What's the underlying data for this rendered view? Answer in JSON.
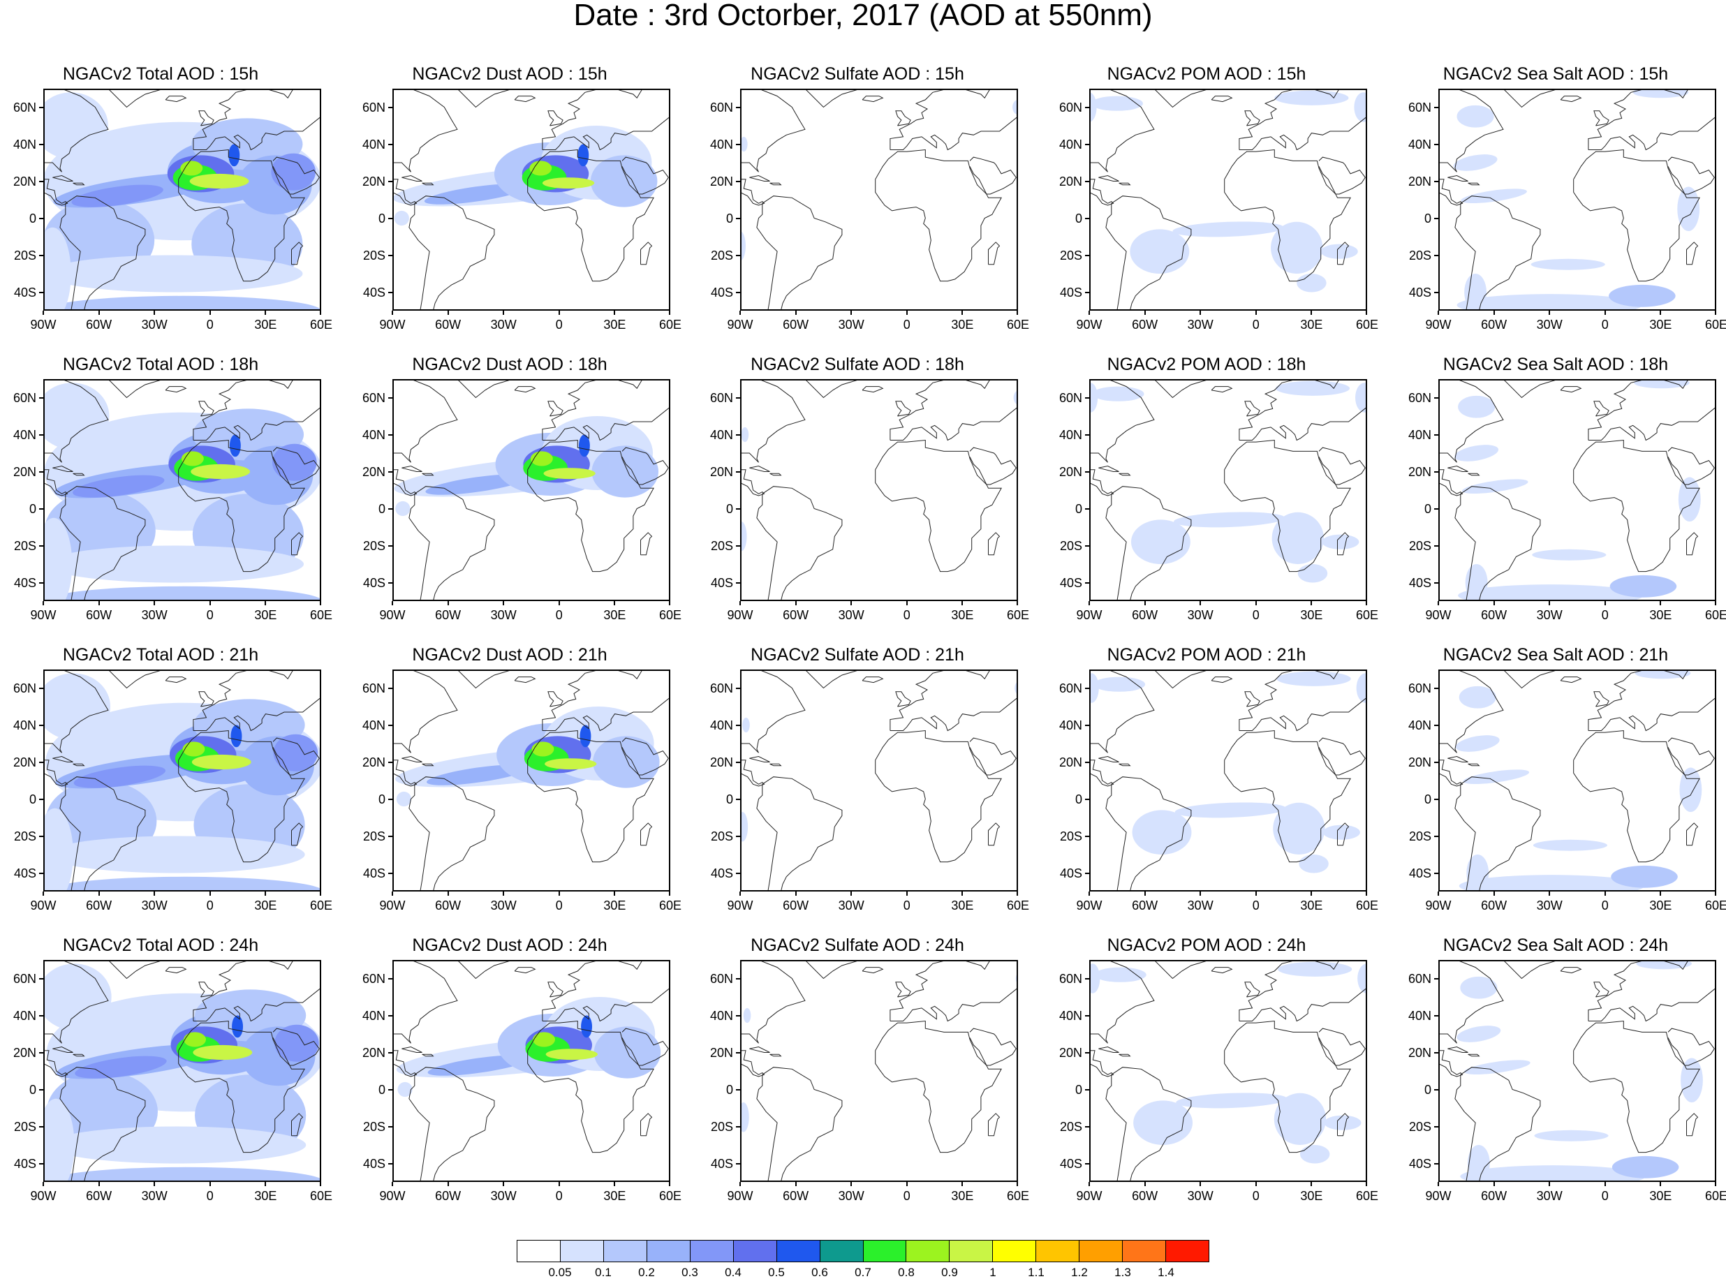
{
  "title": "Date : 3rd Octorber, 2017 (AOD at 550nm)",
  "panels": [
    {
      "title": "NGACv2 Total AOD : 15h",
      "species": "total",
      "hour": 15
    },
    {
      "title": "NGACv2 Dust AOD : 15h",
      "species": "dust",
      "hour": 15
    },
    {
      "title": "NGACv2 Sulfate AOD : 15h",
      "species": "sulfate",
      "hour": 15
    },
    {
      "title": "NGACv2 POM AOD : 15h",
      "species": "pom",
      "hour": 15
    },
    {
      "title": "NGACv2 Sea Salt AOD : 15h",
      "species": "seasalt",
      "hour": 15
    },
    {
      "title": "NGACv2 Total AOD : 18h",
      "species": "total",
      "hour": 18
    },
    {
      "title": "NGACv2 Dust AOD : 18h",
      "species": "dust",
      "hour": 18
    },
    {
      "title": "NGACv2 Sulfate AOD : 18h",
      "species": "sulfate",
      "hour": 18
    },
    {
      "title": "NGACv2 POM AOD : 18h",
      "species": "pom",
      "hour": 18
    },
    {
      "title": "NGACv2 Sea Salt AOD : 18h",
      "species": "seasalt",
      "hour": 18
    },
    {
      "title": "NGACv2 Total AOD : 21h",
      "species": "total",
      "hour": 21
    },
    {
      "title": "NGACv2 Dust AOD : 21h",
      "species": "dust",
      "hour": 21
    },
    {
      "title": "NGACv2 Sulfate AOD : 21h",
      "species": "sulfate",
      "hour": 21
    },
    {
      "title": "NGACv2 POM AOD : 21h",
      "species": "pom",
      "hour": 21
    },
    {
      "title": "NGACv2 Sea Salt AOD : 21h",
      "species": "seasalt",
      "hour": 21
    },
    {
      "title": "NGACv2 Total AOD : 24h",
      "species": "total",
      "hour": 24
    },
    {
      "title": "NGACv2 Dust AOD : 24h",
      "species": "dust",
      "hour": 24
    },
    {
      "title": "NGACv2 Sulfate AOD : 24h",
      "species": "sulfate",
      "hour": 24
    },
    {
      "title": "NGACv2 POM AOD : 24h",
      "species": "pom",
      "hour": 24
    },
    {
      "title": "NGACv2 Sea Salt  AOD : 24h",
      "species": "seasalt",
      "hour": 24
    }
  ],
  "axes": {
    "lon_labels": [
      "90W",
      "60W",
      "30W",
      "0",
      "30E",
      "60E"
    ],
    "lon_values": [
      -90,
      -60,
      -30,
      0,
      30,
      60
    ],
    "lat_labels": [
      "60N",
      "40N",
      "20N",
      "0",
      "20S",
      "40S"
    ],
    "lat_values": [
      60,
      40,
      20,
      0,
      -20,
      -40
    ],
    "lon_range": [
      -90,
      60
    ],
    "lat_range": [
      -50,
      70
    ]
  },
  "colorbar": {
    "levels": [
      "0.05",
      "0.1",
      "0.2",
      "0.3",
      "0.4",
      "0.5",
      "0.6",
      "0.7",
      "0.8",
      "0.9",
      "1",
      "1.1",
      "1.2",
      "1.3",
      "1.4"
    ],
    "colors": [
      "#ffffff",
      "#d6e2fe",
      "#b4c8fc",
      "#98b2fa",
      "#8297f8",
      "#6170ee",
      "#1f58ee",
      "#0e9a8e",
      "#2bf02b",
      "#9cf31f",
      "#c9f545",
      "#ffff00",
      "#ffc500",
      "#ff9f00",
      "#ff7518",
      "#ff1a00"
    ]
  }
}
